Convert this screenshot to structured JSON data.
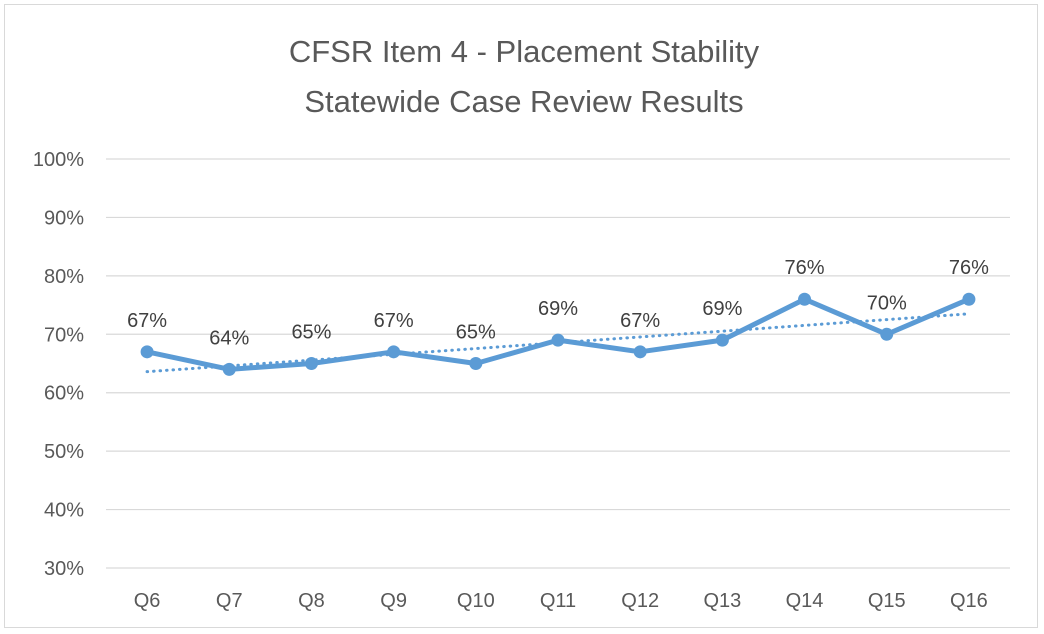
{
  "chart_data": {
    "type": "line",
    "title_lines": [
      "CFSR Item 4 - Placement Stability",
      "Statewide Case Review Results"
    ],
    "categories": [
      "Q6",
      "Q7",
      "Q8",
      "Q9",
      "Q10",
      "Q11",
      "Q12",
      "Q13",
      "Q14",
      "Q15",
      "Q16"
    ],
    "series": [
      {
        "name": "Placement Stability",
        "values": [
          67,
          64,
          65,
          67,
          65,
          69,
          67,
          69,
          76,
          70,
          76
        ],
        "data_labels": [
          "67%",
          "64%",
          "65%",
          "67%",
          "65%",
          "69%",
          "67%",
          "69%",
          "76%",
          "70%",
          "76%"
        ],
        "color": "#5b9bd5"
      }
    ],
    "trendline": {
      "type": "linear",
      "style": "dotted",
      "color": "#5b9bd5",
      "start_value": 63.6,
      "end_value": 73.5
    },
    "yticks": [
      30,
      40,
      50,
      60,
      70,
      80,
      90,
      100
    ],
    "ytick_labels": [
      "30%",
      "40%",
      "50%",
      "60%",
      "70%",
      "80%",
      "90%",
      "100%"
    ],
    "ylim": [
      30,
      100
    ],
    "grid": true,
    "xlabel": "",
    "ylabel": "",
    "gridline_color": "#d9d9d9",
    "axis_color": "#d9d9d9"
  }
}
